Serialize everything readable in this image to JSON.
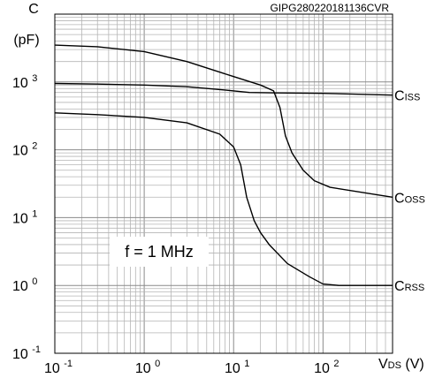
{
  "chart_data": {
    "type": "line",
    "figure_id": "GIPG280220181136CVR",
    "y_axis": {
      "label_top": "C",
      "label_unit": "(pF)",
      "scale": "log",
      "range": [
        0.1,
        10000
      ],
      "ticks": [
        {
          "value": 0.1,
          "base": "10",
          "exp": "-1"
        },
        {
          "value": 1,
          "base": "10",
          "exp": "0"
        },
        {
          "value": 10,
          "base": "10",
          "exp": "1"
        },
        {
          "value": 100,
          "base": "10",
          "exp": "2"
        },
        {
          "value": 1000,
          "base": "10",
          "exp": "3"
        }
      ]
    },
    "x_axis": {
      "label_main": "V",
      "label_sub": "DS",
      "label_unit": " (V)",
      "scale": "log",
      "range": [
        0.1,
        600
      ],
      "ticks": [
        {
          "value": 0.1,
          "base": "10",
          "exp": "-1"
        },
        {
          "value": 1,
          "base": "10",
          "exp": "0"
        },
        {
          "value": 10,
          "base": "10",
          "exp": "1"
        },
        {
          "value": 100,
          "base": "10",
          "exp": "2"
        }
      ]
    },
    "grid": true,
    "annotation": "f = 1 MHz",
    "series": [
      {
        "name": "C",
        "name_sub": "ISS",
        "points": [
          [
            0.1,
            950
          ],
          [
            0.3,
            930
          ],
          [
            1,
            900
          ],
          [
            3,
            850
          ],
          [
            8,
            760
          ],
          [
            15,
            700
          ],
          [
            30,
            690
          ],
          [
            100,
            680
          ],
          [
            600,
            640
          ]
        ]
      },
      {
        "name": "C",
        "name_sub": "OSS",
        "points": [
          [
            0.1,
            3500
          ],
          [
            0.3,
            3300
          ],
          [
            1,
            2800
          ],
          [
            3,
            2000
          ],
          [
            10,
            1200
          ],
          [
            20,
            900
          ],
          [
            28,
            740
          ],
          [
            33,
            420
          ],
          [
            38,
            160
          ],
          [
            45,
            90
          ],
          [
            60,
            50
          ],
          [
            80,
            35
          ],
          [
            120,
            28
          ],
          [
            600,
            20
          ]
        ]
      },
      {
        "name": "C",
        "name_sub": "RSS",
        "points": [
          [
            0.1,
            350
          ],
          [
            0.3,
            330
          ],
          [
            1,
            300
          ],
          [
            3,
            250
          ],
          [
            7,
            170
          ],
          [
            10,
            110
          ],
          [
            12,
            60
          ],
          [
            14,
            20
          ],
          [
            17,
            9
          ],
          [
            20,
            6
          ],
          [
            25,
            4
          ],
          [
            40,
            2.1
          ],
          [
            70,
            1.35
          ],
          [
            100,
            1.05
          ],
          [
            150,
            1
          ],
          [
            600,
            1
          ]
        ]
      }
    ]
  }
}
